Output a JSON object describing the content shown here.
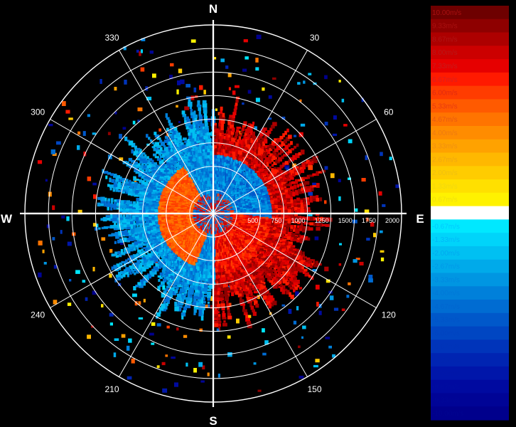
{
  "chart_data": {
    "type": "scatter",
    "compass": {
      "north": "N",
      "east": "E",
      "south": "S",
      "west": "W"
    },
    "bearings": [
      "30",
      "60",
      "120",
      "150",
      "210",
      "240",
      "300",
      "330"
    ],
    "range_labels": [
      "500",
      "750",
      "1000",
      "1250",
      "1500",
      "1750",
      "2000"
    ],
    "range_rings": 8,
    "grid": true,
    "colorbar": {
      "placement": "right",
      "labels": [
        "10.00m/s",
        "9.33m/s",
        "8.67m/s",
        "8.00m/s",
        "7.33m/s",
        "6.67m/s",
        "6.00m/s",
        "5.33m/s",
        "4.67m/s",
        "4.00m/s",
        "3.33m/s",
        "2.67m/s",
        "2.00m/s",
        "1.33m/s",
        "0.67m/s",
        "0.00m/s",
        "-0.67m/s",
        "-1.33m/s",
        "-2.00m/s",
        "-2.67m/s",
        "-3.33m/s",
        "-4.00m/s",
        "-4.67m/s",
        "-5.33m/s",
        "-6.00m/s",
        "-6.67m/s",
        "-7.33m/s",
        "-8.00m/s",
        "-8.67m/s",
        "-9.33m/s",
        "-10.00m/s"
      ],
      "values": [
        10.0,
        9.33,
        8.67,
        8.0,
        7.33,
        6.67,
        6.0,
        5.33,
        4.67,
        4.0,
        3.33,
        2.67,
        2.0,
        1.33,
        0.67,
        0.0,
        -0.67,
        -1.33,
        -2.0,
        -2.67,
        -3.33,
        -4.0,
        -4.67,
        -5.33,
        -6.0,
        -6.67,
        -7.33,
        -8.0,
        -8.67,
        -9.33,
        -10.0
      ],
      "colors": [
        "#6e0000",
        "#8e0000",
        "#ad0000",
        "#cc0000",
        "#e60000",
        "#ff1a00",
        "#ff3c00",
        "#ff5a00",
        "#ff7400",
        "#ff8c00",
        "#ffa200",
        "#ffb800",
        "#ffcc00",
        "#ffe000",
        "#fff200",
        "#ffffff",
        "#00e8ff",
        "#00d4fa",
        "#00c0f2",
        "#00aaea",
        "#0096e2",
        "#0080da",
        "#006cd2",
        "#0058ca",
        "#0046c2",
        "#0034ba",
        "#0024b2",
        "#0016aa",
        "#000aa0",
        "#000496",
        "#00008c"
      ],
      "label_colors": [
        "#aa1010",
        "#aa1010",
        "#b01414",
        "#b81818",
        "#c81c1c",
        "#d82020",
        "#e02a10",
        "#e83a10",
        "#e85a10",
        "#ee7a10",
        "#f09010",
        "#f0a810",
        "#f0c010",
        "#f0d810",
        "#f0e010",
        "#ffffff",
        "#00c8ff",
        "#00b8f8",
        "#00a8f0",
        "#0098e8",
        "#0088e0",
        "#0078d8",
        "#0066d0",
        "#0054c8",
        "#0044c0",
        "#0034b8",
        "#0026b0",
        "#0018a8",
        "#000ea0",
        "#000898",
        "#000490"
      ]
    }
  }
}
